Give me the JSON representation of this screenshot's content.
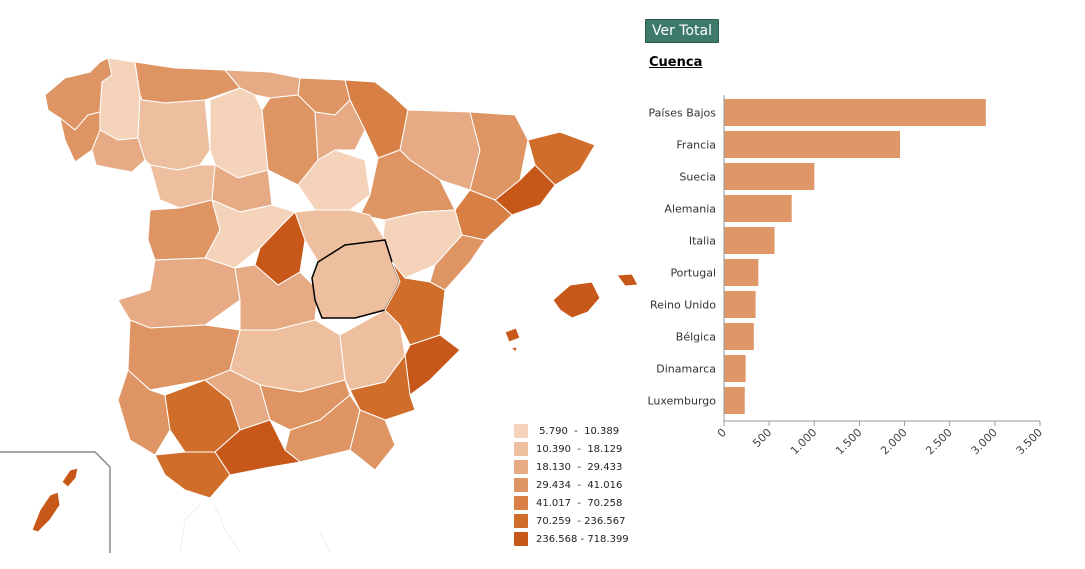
{
  "header": {
    "button_label": "Ver Total"
  },
  "region": {
    "title": "Cuenca"
  },
  "colors": {
    "bar": "#df9768",
    "selected_outline": "#000000",
    "scale": [
      "#f5d3bb",
      "#eebf9f",
      "#e6ab84",
      "#de9563",
      "#d87f45",
      "#d06d2b",
      "#c8571a"
    ]
  },
  "legend": {
    "items": [
      {
        "label": " 5.790  -  10.389"
      },
      {
        "label": "10.390  -  18.129"
      },
      {
        "label": "18.130  -  29.433"
      },
      {
        "label": "29.434  -  41.016"
      },
      {
        "label": "41.017  -  70.258"
      },
      {
        "label": "70.259  - 236.567"
      },
      {
        "label": "236.568 - 718.399"
      }
    ]
  },
  "chart_data": {
    "type": "bar",
    "orientation": "horizontal",
    "categories": [
      "Países Bajos",
      "Francia",
      "Suecia",
      "Alemania",
      "Italia",
      "Portugal",
      "Reino Unido",
      "Bélgica",
      "Dinamarca",
      "Luxemburgo"
    ],
    "values": [
      2900,
      1950,
      1000,
      750,
      560,
      380,
      350,
      330,
      240,
      230
    ],
    "xlim": [
      0,
      3500
    ],
    "ticks": [
      "0",
      "500",
      "1.000",
      "1.500",
      "2.000",
      "2.500",
      "3.000",
      "3.500"
    ],
    "grid": false
  }
}
